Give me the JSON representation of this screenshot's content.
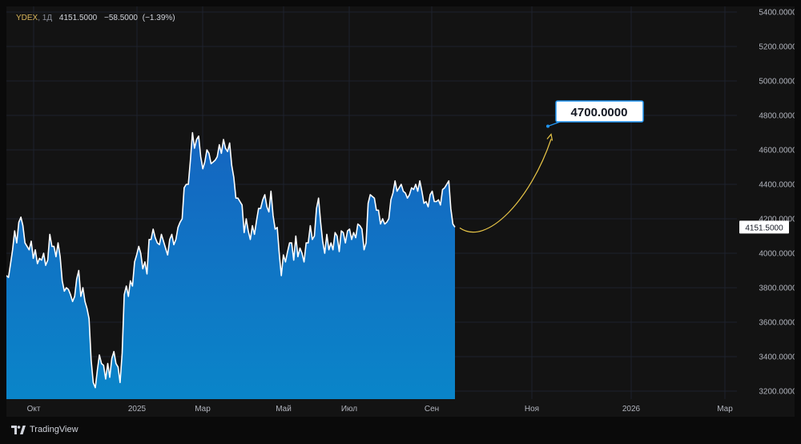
{
  "legend": {
    "symbol": "YDEX",
    "interval": "1Д",
    "last": "4151.5000",
    "change": "−58.5000",
    "change_pct": "(−1.39%)"
  },
  "brand": {
    "name": "TradingView",
    "icon": "tradingview-logo-icon"
  },
  "colors": {
    "line": "#ffffff",
    "area_top": "#1565c0",
    "area_bottom": "#0a85c9",
    "projection": "#e8c547",
    "callout": "#2196f3",
    "grid": "#1e222d",
    "axis_text": "#b2b5be"
  },
  "chart_data": {
    "type": "area",
    "title": "",
    "ylabel": "",
    "xlabel": "",
    "ylim": [
      3150,
      5400
    ],
    "y_ticks": [
      "3200.0000",
      "3400.0000",
      "3600.0000",
      "3800.0000",
      "4000.0000",
      "4200.0000",
      "4400.0000",
      "4600.0000",
      "4800.0000",
      "5000.0000",
      "5200.0000",
      "5400.0000"
    ],
    "x_ticks": [
      "Окт",
      "2025",
      "Мар",
      "Май",
      "Июл",
      "Сен",
      "Ноя",
      "2026",
      "Мар"
    ],
    "series": [
      {
        "values": [
          3870,
          3860,
          3940,
          4020,
          4130,
          4060,
          4180,
          4210,
          4160,
          4060,
          4040,
          4020,
          4070,
          3970,
          4020,
          3940,
          3970,
          3960,
          4000,
          3930,
          3960,
          4110,
          4040,
          4040,
          3980,
          4060,
          3980,
          3840,
          3780,
          3800,
          3790,
          3760,
          3720,
          3750,
          3850,
          3900,
          3750,
          3800,
          3720,
          3680,
          3620,
          3380,
          3250,
          3220,
          3320,
          3410,
          3360,
          3350,
          3270,
          3360,
          3280,
          3390,
          3430,
          3360,
          3340,
          3250,
          3420,
          3760,
          3810,
          3750,
          3840,
          3810,
          3950,
          3990,
          4040,
          4000,
          3910,
          3950,
          3880,
          4080,
          4080,
          4140,
          4090,
          4060,
          4050,
          4110,
          4070,
          4030,
          3990,
          4080,
          4110,
          4050,
          4080,
          4150,
          4180,
          4200,
          4380,
          4400,
          4400,
          4540,
          4700,
          4610,
          4660,
          4680,
          4560,
          4490,
          4530,
          4600,
          4580,
          4520,
          4530,
          4540,
          4560,
          4630,
          4580,
          4660,
          4610,
          4590,
          4640,
          4510,
          4440,
          4320,
          4320,
          4300,
          4280,
          4120,
          4200,
          4130,
          4080,
          4160,
          4110,
          4190,
          4260,
          4260,
          4310,
          4340,
          4270,
          4240,
          4360,
          4220,
          4140,
          4150,
          4000,
          3870,
          3990,
          3950,
          4010,
          4060,
          4060,
          3960,
          4100,
          3980,
          4030,
          4000,
          3950,
          4060,
          4060,
          4160,
          4080,
          4100,
          4260,
          4320,
          4180,
          4070,
          4000,
          4110,
          4020,
          4060,
          4020,
          4120,
          4100,
          4010,
          4130,
          4120,
          4060,
          4130,
          4140,
          4080,
          4120,
          4090,
          4170,
          4160,
          4140,
          4020,
          4060,
          4290,
          4340,
          4330,
          4320,
          4250,
          4250,
          4170,
          4200,
          4170,
          4180,
          4200,
          4310,
          4350,
          4420,
          4360,
          4380,
          4400,
          4360,
          4350,
          4320,
          4340,
          4380,
          4370,
          4400,
          4360,
          4420,
          4360,
          4290,
          4300,
          4270,
          4340,
          4360,
          4300,
          4300,
          4310,
          4280,
          4370,
          4380,
          4400,
          4420,
          4260,
          4170,
          4151.5
        ]
      }
    ],
    "last_price_label": "4151.5000",
    "projection": {
      "target": 4700,
      "label": "4700.0000"
    }
  }
}
